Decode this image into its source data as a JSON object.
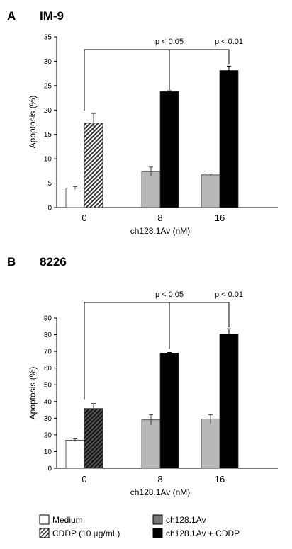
{
  "chart_data": [
    {
      "type": "bar",
      "panel": "A",
      "title": "IM-9",
      "ylabel": "Apoptosis (%)",
      "xlabel": "ch128.1Av (nM)",
      "ylim": [
        0,
        35
      ],
      "yticks": [
        "0",
        "5",
        "10",
        "15",
        "20",
        "25",
        "30",
        "35"
      ],
      "categories": [
        "0",
        "8",
        "16"
      ],
      "bars": [
        {
          "category": "0",
          "series": "Medium",
          "value": 4.0,
          "error": 0.3
        },
        {
          "category": "0",
          "series": "CDDP (10 µg/mL)",
          "value": 17.3,
          "error": 2.0
        },
        {
          "category": "8",
          "series": "ch128.1Av",
          "value": 7.4,
          "error": 0.9
        },
        {
          "category": "8",
          "series": "ch128.1Av + CDDP",
          "value": 23.8,
          "error": 0.15
        },
        {
          "category": "16",
          "series": "ch128.1Av",
          "value": 6.7,
          "error": 0.2
        },
        {
          "category": "16",
          "series": "ch128.1Av + CDDP",
          "value": 28.1,
          "error": 0.9
        }
      ],
      "annotations": [
        "p < 0.05",
        "p < 0.01"
      ],
      "grid": false
    },
    {
      "type": "bar",
      "panel": "B",
      "title": "8226",
      "ylabel": "Apoptosis (%)",
      "xlabel": "ch128.1Av (nM)",
      "ylim": [
        0,
        90
      ],
      "yticks": [
        "0",
        "10",
        "20",
        "30",
        "40",
        "50",
        "60",
        "70",
        "80",
        "90"
      ],
      "categories": [
        "0",
        "8",
        "16"
      ],
      "bars": [
        {
          "category": "0",
          "series": "Medium",
          "value": 16.8,
          "error": 0.8
        },
        {
          "category": "0",
          "series": "CDDP (10 µg/mL)",
          "value": 35.8,
          "error": 3.0
        },
        {
          "category": "8",
          "series": "ch128.1Av",
          "value": 29.0,
          "error": 3.0
        },
        {
          "category": "8",
          "series": "ch128.1Av + CDDP",
          "value": 69.0,
          "error": 0.4
        },
        {
          "category": "16",
          "series": "ch128.1Av",
          "value": 29.5,
          "error": 2.5
        },
        {
          "category": "16",
          "series": "ch128.1Av + CDDP",
          "value": 80.5,
          "error": 3.0
        }
      ],
      "annotations": [
        "p < 0.05",
        "p < 0.01"
      ],
      "grid": false
    }
  ],
  "legend": [
    {
      "label": "Medium",
      "style": "white"
    },
    {
      "label": "CDDP (10 µg/mL)",
      "style": "hatched"
    },
    {
      "label": "ch128.1Av",
      "style": "gray"
    },
    {
      "label": "ch128.1Av + CDDP",
      "style": "black"
    }
  ],
  "colors": {
    "Medium": "#ffffff",
    "ch128.1Av": "#b8b8b8",
    "ch128.1Av + CDDP": "#000000",
    "hatch": "#333333"
  }
}
